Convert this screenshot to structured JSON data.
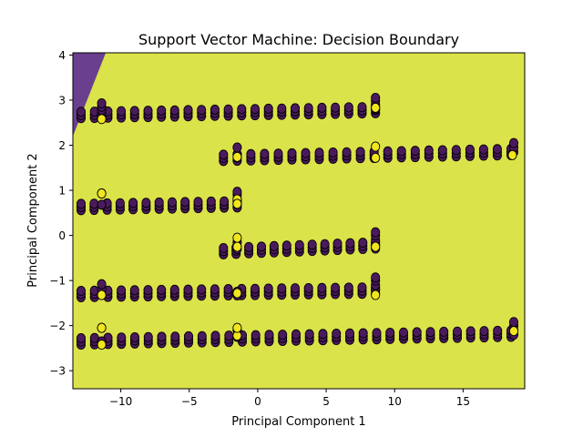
{
  "chart_data": {
    "type": "scatter",
    "title": "Support Vector Machine: Decision Boundary",
    "xlabel": "Principal Component 1",
    "ylabel": "Principal Component 2",
    "xlim": [
      -13.5,
      19.5
    ],
    "ylim": [
      -3.4,
      4.05
    ],
    "xticks": [
      -10,
      -5,
      0,
      5,
      10,
      15
    ],
    "yticks": [
      -3,
      -2,
      -1,
      0,
      1,
      2,
      3,
      4
    ],
    "grid": false,
    "legend": "none",
    "decision_regions": [
      {
        "class": 0,
        "color": "#6a3f8e",
        "polygon": [
          [
            -13.5,
            2.2
          ],
          [
            -13.5,
            4.05
          ],
          [
            -11.1,
            4.05
          ]
        ]
      },
      {
        "class": 1,
        "color": "#dbe34a"
      }
    ],
    "series": [
      {
        "class": 0,
        "color": "#4b1a5e",
        "bands": [
          {
            "x_start": -12.9,
            "x_end": 8.6,
            "x_step": 0.97,
            "y_start": 2.67,
            "y_end": 2.78
          },
          {
            "x_start": -2.5,
            "x_end": 18.5,
            "x_step": 1.0,
            "y_start": 1.72,
            "y_end": 1.85
          },
          {
            "x_start": -12.9,
            "x_end": -1.5,
            "x_step": 0.95,
            "y_start": 0.63,
            "y_end": 0.69
          },
          {
            "x_start": -2.5,
            "x_end": 8.6,
            "x_step": 0.93,
            "y_start": -0.35,
            "y_end": -0.22
          },
          {
            "x_start": -12.9,
            "x_end": 8.6,
            "x_step": 0.97,
            "y_start": -1.3,
            "y_end": -1.22
          },
          {
            "x_start": -12.9,
            "x_end": 18.5,
            "x_step": 0.98,
            "y_start": -2.35,
            "y_end": -2.18
          }
        ],
        "clusters": [
          {
            "x": -11.4,
            "ys": [
              2.6,
              2.7,
              2.78,
              2.85,
              2.93
            ]
          },
          {
            "x": 8.6,
            "ys": [
              2.8,
              2.9,
              2.98,
              3.05
            ]
          },
          {
            "x": -1.5,
            "ys": [
              1.8,
              1.95
            ]
          },
          {
            "x": 18.7,
            "ys": [
              1.85,
              1.95,
              2.05
            ]
          },
          {
            "x": -1.5,
            "ys": [
              0.7,
              0.8,
              0.9,
              0.97
            ]
          },
          {
            "x": -11.4,
            "ys": [
              0.68,
              0.93
            ]
          },
          {
            "x": -1.5,
            "ys": [
              -0.3,
              -0.15
            ]
          },
          {
            "x": 8.6,
            "ys": [
              -0.2,
              -0.1,
              0.0,
              0.07
            ]
          },
          {
            "x": -11.4,
            "ys": [
              -1.32,
              -1.2,
              -1.08
            ]
          },
          {
            "x": 8.6,
            "ys": [
              -1.2,
              -1.1,
              -1.0,
              -0.93
            ]
          },
          {
            "x": -1.5,
            "ys": [
              -1.33,
              -1.25
            ]
          },
          {
            "x": -11.4,
            "ys": [
              -2.35,
              -2.05
            ]
          },
          {
            "x": -1.5,
            "ys": [
              -2.25,
              -2.1
            ]
          },
          {
            "x": 18.7,
            "ys": [
              -2.2,
              -2.1,
              -2.0,
              -1.92
            ]
          }
        ]
      },
      {
        "class": 1,
        "color": "#f1e51d",
        "points": [
          [
            -11.4,
            2.58
          ],
          [
            -11.4,
            0.93
          ],
          [
            -11.4,
            -1.32
          ],
          [
            -11.4,
            -2.42
          ],
          [
            -11.4,
            -2.05
          ],
          [
            -1.5,
            1.74
          ],
          [
            -1.5,
            0.8
          ],
          [
            -1.5,
            0.7
          ],
          [
            -1.5,
            -0.25
          ],
          [
            -1.5,
            -0.05
          ],
          [
            -1.5,
            -1.28
          ],
          [
            -1.5,
            -2.22
          ],
          [
            -1.5,
            -2.05
          ],
          [
            8.6,
            2.83
          ],
          [
            8.6,
            1.97
          ],
          [
            8.6,
            1.72
          ],
          [
            8.6,
            -0.25
          ],
          [
            8.6,
            -1.32
          ],
          [
            18.6,
            1.78
          ],
          [
            18.7,
            -2.12
          ]
        ]
      }
    ]
  }
}
